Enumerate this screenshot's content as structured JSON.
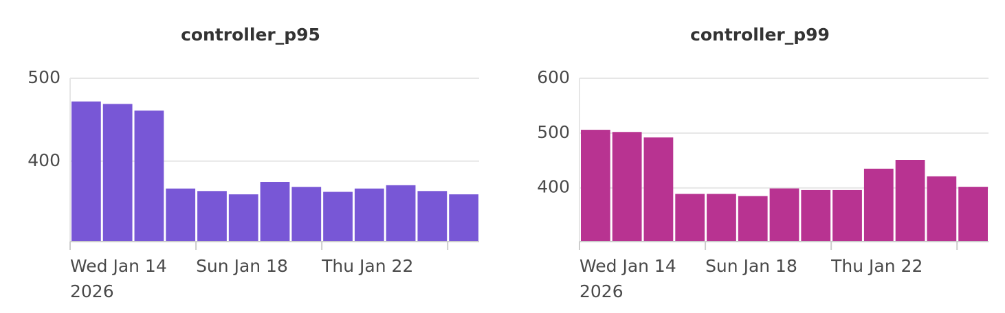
{
  "chart_data": [
    {
      "type": "bar",
      "title": "controller_p95",
      "color": "#7857d6",
      "x": [
        "2026-01-14",
        "2026-01-15",
        "2026-01-16",
        "2026-01-17",
        "2026-01-18",
        "2026-01-19",
        "2026-01-20",
        "2026-01-21",
        "2026-01-22",
        "2026-01-23",
        "2026-01-24",
        "2026-01-25",
        "2026-01-26"
      ],
      "values": [
        472,
        469,
        461,
        367,
        364,
        360,
        375,
        369,
        363,
        367,
        371,
        364,
        360
      ],
      "xlim": [
        "2026-01-14",
        "2026-01-27"
      ],
      "xticks": [
        {
          "value": "2026-01-14",
          "label": "Wed Jan 14",
          "sublabel": "2026"
        },
        {
          "value": "2026-01-18",
          "label": "Sun Jan 18"
        },
        {
          "value": "2026-01-22",
          "label": "Thu Jan 22"
        },
        {
          "value": "2026-01-26",
          "label": null
        }
      ],
      "ylim": [
        303,
        500
      ],
      "yticks": [
        400,
        500
      ],
      "grid": true
    },
    {
      "type": "bar",
      "title": "controller_p99",
      "color": "#b83391",
      "x": [
        "2026-01-14",
        "2026-01-15",
        "2026-01-16",
        "2026-01-17",
        "2026-01-18",
        "2026-01-19",
        "2026-01-20",
        "2026-01-21",
        "2026-01-22",
        "2026-01-23",
        "2026-01-24",
        "2026-01-25",
        "2026-01-26"
      ],
      "values": [
        506,
        502,
        492,
        389,
        389,
        385,
        399,
        396,
        396,
        435,
        451,
        421,
        402
      ],
      "xlim": [
        "2026-01-14",
        "2026-01-27"
      ],
      "xticks": [
        {
          "value": "2026-01-14",
          "label": "Wed Jan 14",
          "sublabel": "2026"
        },
        {
          "value": "2026-01-18",
          "label": "Sun Jan 18"
        },
        {
          "value": "2026-01-22",
          "label": "Thu Jan 22"
        },
        {
          "value": "2026-01-26",
          "label": null
        }
      ],
      "ylim": [
        302,
        600
      ],
      "yticks": [
        400,
        500,
        600
      ],
      "grid": true
    }
  ]
}
